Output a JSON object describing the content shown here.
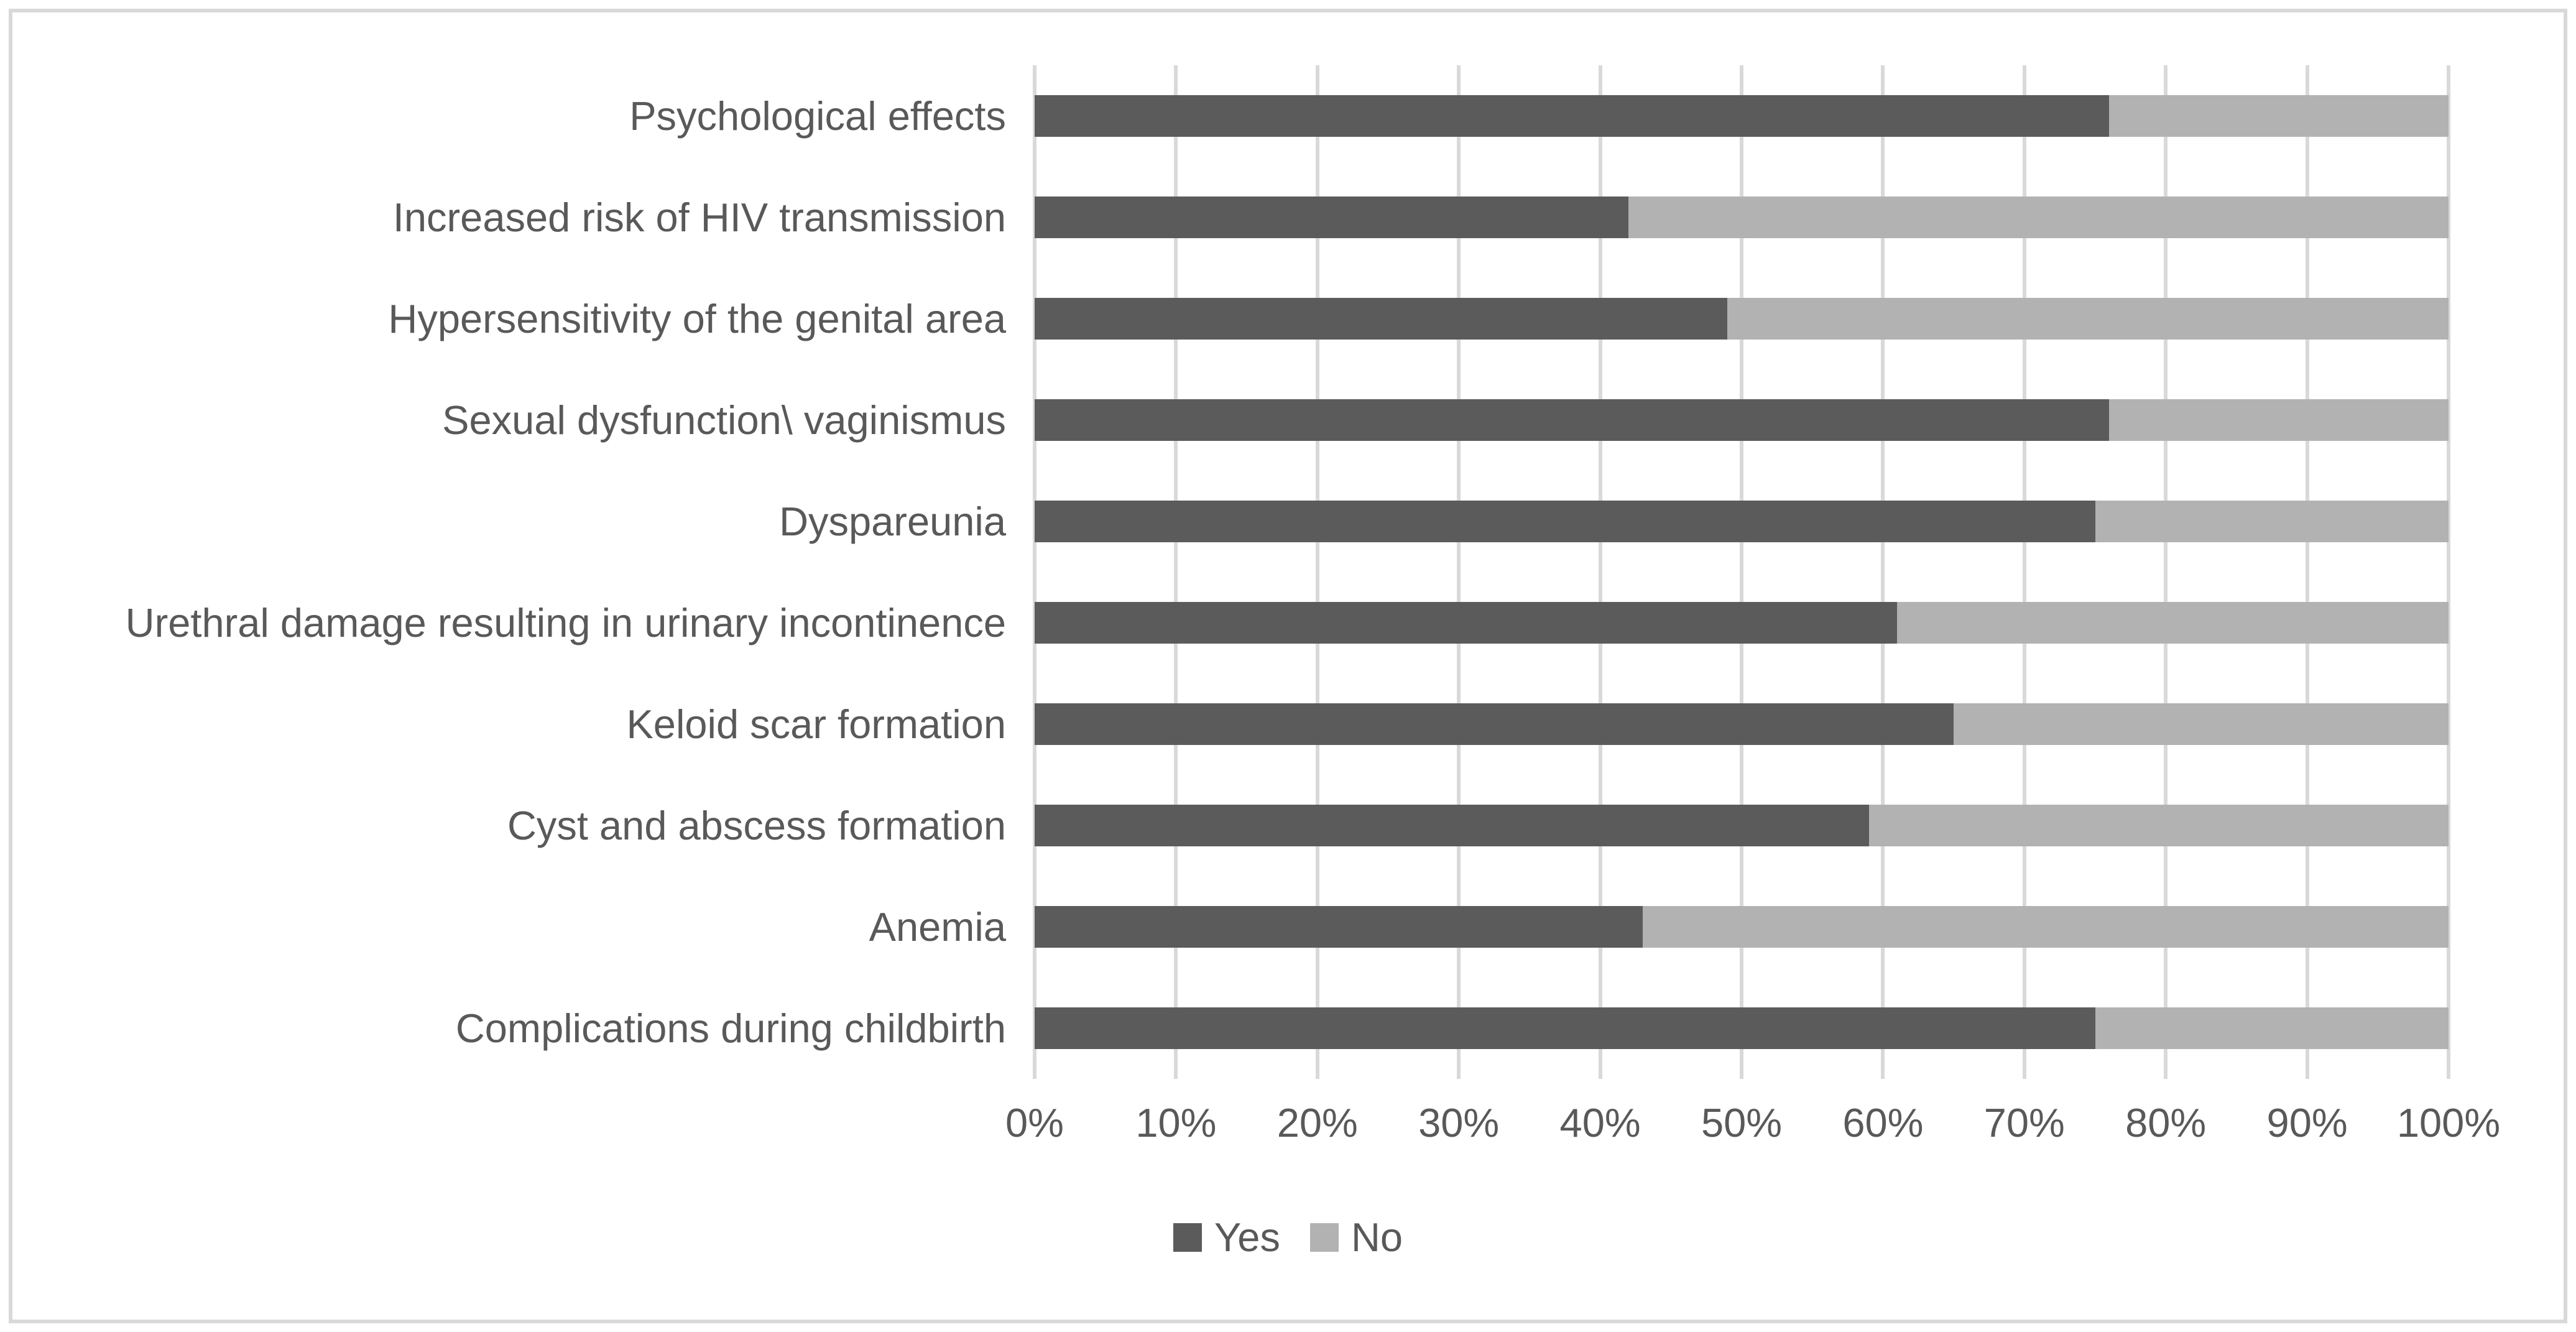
{
  "chart_data": {
    "type": "bar",
    "orientation": "horizontal",
    "stacked": true,
    "stack_total": 100,
    "categories": [
      "Psychological effects",
      "Increased risk of HIV transmission",
      "Hypersensitivity of the genital area",
      "Sexual dysfunction\\ vaginismus",
      "Dyspareunia",
      "Urethral damage resulting in urinary incontinence",
      "Keloid scar formation",
      "Cyst and abscess formation",
      "Anemia",
      "Complications during childbirth"
    ],
    "series": [
      {
        "name": "Yes",
        "color": "#5b5b5b",
        "values": [
          76,
          42,
          49,
          76,
          75,
          61,
          65,
          59,
          43,
          75
        ]
      },
      {
        "name": "No",
        "color": "#b2b2b2",
        "values": [
          24,
          58,
          51,
          24,
          25,
          39,
          35,
          41,
          57,
          25
        ]
      }
    ],
    "x_axis": {
      "min": 0,
      "max": 100,
      "unit": "%",
      "ticks": [
        "0%",
        "10%",
        "20%",
        "30%",
        "40%",
        "50%",
        "60%",
        "70%",
        "80%",
        "90%",
        "100%"
      ]
    },
    "legend": {
      "position": "bottom",
      "entries": [
        "Yes",
        "No"
      ]
    },
    "grid": {
      "vertical": true,
      "color": "#d9d9d9"
    }
  },
  "colors": {
    "background": "#ffffff",
    "frame_border": "#d9d9d9",
    "text": "#595959"
  }
}
